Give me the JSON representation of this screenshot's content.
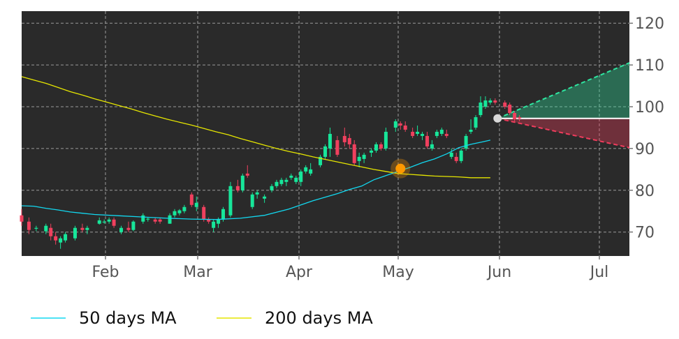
{
  "chart_data": {
    "type": "candlestick",
    "colors": {
      "background": "#2a2a2a",
      "up": "#17e69a",
      "down": "#f0405e",
      "ma50": "#12d8f0",
      "ma200": "#e6e600",
      "crossover": "#ff9900",
      "current_marker": "#d8d8d8",
      "forecast_up": "#2ee6a0",
      "forecast_down": "#f03c5c",
      "grid": "#9a9a9a",
      "axis_text": "#555555"
    },
    "x_ticks": [
      "Feb",
      "Mar",
      "Apr",
      "May",
      "Jun",
      "Jul"
    ],
    "y_ticks": [
      70,
      80,
      90,
      100,
      110,
      120
    ],
    "ylim": [
      64,
      122.5
    ],
    "legend": [
      {
        "label": "50 days MA",
        "color": "#12d8f0",
        "key": "ma50"
      },
      {
        "label": "200 days MA",
        "color": "#e6e600",
        "key": "ma200"
      }
    ],
    "legend_placement": "bottom",
    "grid": true,
    "ma50": [
      [
        0,
        76.3
      ],
      [
        5,
        76.2
      ],
      [
        10,
        75.7
      ],
      [
        15,
        75.3
      ],
      [
        20,
        74.8
      ],
      [
        25,
        74.5
      ],
      [
        30,
        74.2
      ],
      [
        40,
        73.9
      ],
      [
        50,
        73.6
      ],
      [
        60,
        73.3
      ],
      [
        70,
        73.1
      ],
      [
        80,
        73.0
      ],
      [
        90,
        73.3
      ],
      [
        100,
        74.0
      ],
      [
        110,
        75.5
      ],
      [
        120,
        77.5
      ],
      [
        130,
        79.2
      ],
      [
        135,
        80.2
      ],
      [
        140,
        81.0
      ],
      [
        145,
        82.5
      ],
      [
        150,
        83.5
      ],
      [
        155,
        84.5
      ],
      [
        160,
        85.5
      ],
      [
        165,
        86.6
      ],
      [
        170,
        87.5
      ],
      [
        175,
        88.7
      ],
      [
        180,
        90.2
      ],
      [
        185,
        91.0
      ],
      [
        190,
        91.6
      ],
      [
        193,
        92.0
      ]
    ],
    "ma200": [
      [
        0,
        107.2
      ],
      [
        5,
        106.4
      ],
      [
        10,
        105.6
      ],
      [
        15,
        104.6
      ],
      [
        20,
        103.6
      ],
      [
        25,
        102.8
      ],
      [
        30,
        101.9
      ],
      [
        35,
        101.1
      ],
      [
        40,
        100.3
      ],
      [
        45,
        99.5
      ],
      [
        50,
        98.6
      ],
      [
        55,
        97.8
      ],
      [
        60,
        97.0
      ],
      [
        65,
        96.3
      ],
      [
        70,
        95.6
      ],
      [
        75,
        94.8
      ],
      [
        80,
        94.0
      ],
      [
        85,
        93.3
      ],
      [
        90,
        92.4
      ],
      [
        95,
        91.6
      ],
      [
        100,
        90.8
      ],
      [
        105,
        90.0
      ],
      [
        110,
        89.3
      ],
      [
        115,
        88.7
      ],
      [
        120,
        88.0
      ],
      [
        125,
        87.4
      ],
      [
        130,
        86.8
      ],
      [
        135,
        86.2
      ],
      [
        140,
        85.6
      ],
      [
        145,
        85.0
      ],
      [
        150,
        84.5
      ],
      [
        155,
        84.0
      ],
      [
        160,
        83.8
      ],
      [
        165,
        83.6
      ],
      [
        170,
        83.4
      ],
      [
        175,
        83.3
      ],
      [
        180,
        83.2
      ],
      [
        185,
        83.0
      ],
      [
        193,
        83.0
      ]
    ],
    "crossover": {
      "day": 156,
      "value": 85.2
    },
    "current": {
      "day": 196,
      "value": 97.2
    },
    "forecast": {
      "end_day": 240,
      "upper": 110.5,
      "lower": 90.2
    },
    "candles": [
      [
        0,
        74,
        75.5,
        71.5,
        72.5
      ],
      [
        3,
        72.5,
        73.5,
        69.5,
        70.5
      ],
      [
        6,
        70.8,
        71.5,
        70.2,
        71
      ],
      [
        10,
        70.2,
        72,
        69.5,
        71.5
      ],
      [
        12,
        71,
        72,
        68,
        69
      ],
      [
        14,
        69,
        70,
        67,
        68
      ],
      [
        16,
        67.5,
        69,
        66,
        68.5
      ],
      [
        18,
        68,
        70,
        67.5,
        69.5
      ],
      [
        22,
        68.5,
        71.5,
        68,
        71
      ],
      [
        25,
        71,
        72,
        70,
        70.5
      ],
      [
        27,
        70.5,
        71.5,
        69.5,
        71
      ],
      [
        32,
        72,
        73.5,
        71.8,
        72.8
      ],
      [
        34,
        72.5,
        73,
        72,
        72.5
      ],
      [
        36,
        72.5,
        73.5,
        72,
        73
      ],
      [
        38,
        73,
        73.5,
        71,
        71.5
      ],
      [
        41,
        70,
        71.5,
        69.5,
        71
      ],
      [
        44,
        71,
        72.5,
        70,
        70.5
      ],
      [
        46,
        70.5,
        72.8,
        70.2,
        72.5
      ],
      [
        50,
        72.5,
        74.5,
        72,
        74
      ],
      [
        52,
        73,
        73.5,
        72.5,
        73.2
      ],
      [
        55,
        73,
        73.5,
        72,
        72.5
      ],
      [
        57,
        73,
        73.5,
        72,
        72.5
      ],
      [
        61,
        72,
        74.5,
        72,
        74
      ],
      [
        63,
        74,
        75.5,
        73.5,
        75
      ],
      [
        65,
        74.5,
        75.5,
        74,
        75.2
      ],
      [
        67,
        75,
        76.5,
        74.5,
        76
      ],
      [
        70,
        79,
        79.5,
        76,
        76.5
      ],
      [
        72,
        76,
        78.5,
        75,
        77
      ],
      [
        75,
        76,
        76.5,
        72.5,
        73
      ],
      [
        77,
        73,
        73.5,
        72,
        72.5
      ],
      [
        79,
        71,
        73,
        70,
        72.5
      ],
      [
        81,
        72,
        73.5,
        71,
        73
      ],
      [
        83,
        73,
        76,
        72.5,
        75.5
      ],
      [
        86,
        74,
        82,
        73.5,
        81
      ],
      [
        89,
        81,
        82.5,
        79.5,
        80
      ],
      [
        91,
        80,
        84,
        79.5,
        83.5
      ],
      [
        93,
        84,
        86,
        83,
        83.5
      ],
      [
        95,
        76,
        79.5,
        75.5,
        79
      ],
      [
        97,
        79,
        80,
        78,
        79.5
      ],
      [
        100,
        78,
        79,
        77,
        78.5
      ],
      [
        103,
        80,
        81.5,
        79.5,
        81
      ],
      [
        105,
        81,
        82.5,
        80.5,
        82
      ],
      [
        107,
        81.5,
        83,
        81,
        82.5
      ],
      [
        109,
        82,
        83,
        81,
        82.5
      ],
      [
        111,
        83,
        84,
        82.5,
        83.5
      ],
      [
        113,
        82,
        83.5,
        81.5,
        83
      ],
      [
        115,
        82,
        85,
        81,
        84.5
      ],
      [
        117,
        84.5,
        86,
        84,
        85.5
      ],
      [
        119,
        84,
        86.5,
        83.5,
        85
      ],
      [
        123,
        86,
        88.5,
        85.5,
        88
      ],
      [
        125,
        88,
        91,
        87.5,
        90.5
      ],
      [
        127,
        90,
        95,
        88,
        93.5
      ],
      [
        130,
        92,
        93,
        88,
        88.5
      ],
      [
        133,
        93,
        95,
        90.5,
        91.5
      ],
      [
        135,
        92.5,
        93.5,
        90,
        91
      ],
      [
        137,
        91,
        92,
        86,
        86.5
      ],
      [
        139,
        87,
        89,
        85.5,
        88
      ],
      [
        141,
        87.5,
        89,
        86.5,
        88.5
      ],
      [
        144,
        89,
        90,
        88,
        89.5
      ],
      [
        146,
        89.5,
        91.5,
        89,
        91
      ],
      [
        148,
        91,
        91.5,
        89.5,
        90
      ],
      [
        150,
        90,
        95,
        89.5,
        94
      ],
      [
        154,
        95,
        97,
        94,
        96.5
      ],
      [
        156,
        96,
        96.5,
        94.5,
        95.5
      ],
      [
        158,
        95.5,
        96.5,
        94,
        94.5
      ],
      [
        161,
        94,
        95,
        92.5,
        93
      ],
      [
        163,
        93.5,
        95.5,
        93,
        94
      ],
      [
        165,
        93,
        94,
        92,
        93.5
      ],
      [
        167,
        93,
        94,
        90,
        90.5
      ],
      [
        169,
        90,
        92,
        89.5,
        91
      ],
      [
        171,
        93,
        94.5,
        92.5,
        94
      ],
      [
        173,
        93.5,
        95,
        93,
        94.5
      ],
      [
        175,
        93.5,
        94.5,
        92.5,
        93
      ],
      [
        177,
        88,
        90,
        87.5,
        89
      ],
      [
        179,
        88,
        89,
        86.5,
        87
      ],
      [
        181,
        87,
        90,
        86.5,
        89.5
      ],
      [
        183,
        90,
        93.5,
        89.5,
        93
      ],
      [
        185,
        94,
        97,
        93.5,
        94.5
      ],
      [
        187,
        95,
        98,
        94.5,
        97.5
      ],
      [
        189,
        98,
        102.5,
        97.5,
        101
      ],
      [
        191,
        100,
        102.5,
        99.5,
        101.5
      ],
      [
        193,
        101,
        102,
        100.5,
        101.5
      ],
      [
        195,
        101.5,
        102,
        100.5,
        101
      ],
      [
        199,
        101,
        101.5,
        99.5,
        100
      ],
      [
        201,
        100.5,
        101,
        98,
        98.5
      ],
      [
        203,
        98.5,
        99,
        96.5,
        97
      ],
      [
        205,
        97.5,
        98,
        96.5,
        97.2
      ]
    ],
    "note": ""
  }
}
